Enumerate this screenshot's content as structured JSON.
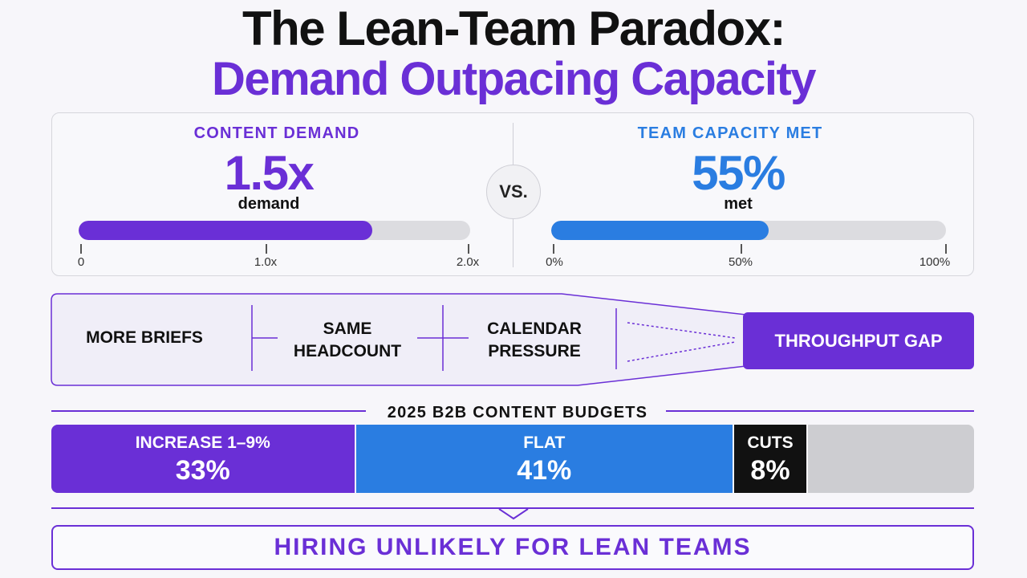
{
  "title": {
    "line1": "The Lean-Team Paradox:",
    "line2": "Demand Outpacing Capacity"
  },
  "colors": {
    "purple": "#6a2fd6",
    "blue": "#2a7de1",
    "black": "#111111",
    "gray_track": "#dcdce0",
    "gray_segment": "#cdcdd1"
  },
  "demand": {
    "label": "CONTENT DEMAND",
    "value": "1.5x",
    "unit": "demand",
    "fill_fraction": 0.75,
    "ticks": [
      "0",
      "1.0x",
      "2.0x"
    ]
  },
  "vs_label": "VS.",
  "capacity": {
    "label": "TEAM CAPACITY MET",
    "value": "55%",
    "unit": "met",
    "fill_fraction": 0.55,
    "ticks": [
      "0%",
      "50%",
      "100%"
    ]
  },
  "funnel": {
    "items": [
      "MORE BRIEFS",
      "SAME\nHEADCOUNT",
      "CALENDAR\nPRESSURE"
    ],
    "result": "THROUGHPUT GAP"
  },
  "budgets": {
    "title": "2025 B2B CONTENT BUDGETS",
    "segments": [
      {
        "label": "INCREASE 1–9%",
        "value": "33%",
        "share": 33,
        "color": "#6a2fd6"
      },
      {
        "label": "FLAT",
        "value": "41%",
        "share": 41,
        "color": "#2a7de1"
      },
      {
        "label": "CUTS",
        "value": "8%",
        "share": 8,
        "color": "#111111"
      }
    ],
    "remainder_share": 18
  },
  "conclusion": "HIRING UNLIKELY FOR LEAN TEAMS"
}
